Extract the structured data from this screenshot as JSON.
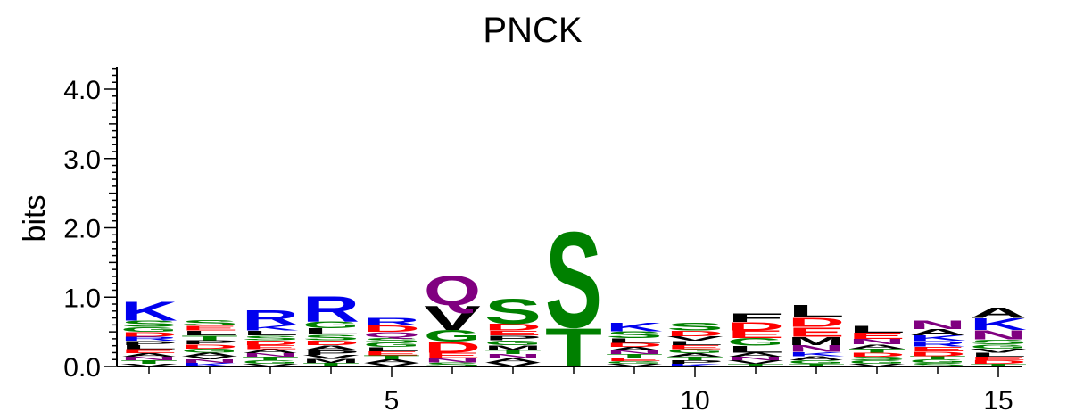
{
  "chart_data": {
    "type": "sequence-logo",
    "title": "PNCK",
    "ylabel": "bits",
    "ylim": [
      0,
      4.3
    ],
    "y_ticks": [
      {
        "value": 0.0,
        "label": "0.0"
      },
      {
        "value": 1.0,
        "label": "1.0"
      },
      {
        "value": 2.0,
        "label": "2.0"
      },
      {
        "value": 3.0,
        "label": "3.0"
      },
      {
        "value": 4.0,
        "label": "4.0"
      }
    ],
    "x_ticks": [
      {
        "position": 5,
        "label": "5"
      },
      {
        "position": 10,
        "label": "10"
      },
      {
        "position": 15,
        "label": "15"
      }
    ],
    "residue_colors": {
      "K": "#0000ee",
      "R": "#0000ee",
      "H": "#0000ee",
      "D": "#ff0000",
      "E": "#ff0000",
      "S": "#008000",
      "T": "#008000",
      "G": "#008000",
      "Y": "#008000",
      "C": "#008000",
      "Q": "#800080",
      "N": "#800080",
      "A": "#000000",
      "V": "#000000",
      "L": "#000000",
      "I": "#000000",
      "P": "#000000",
      "F": "#000000",
      "M": "#000000",
      "W": "#000000"
    },
    "positions": [
      {
        "pos": 1,
        "stack": [
          [
            "V",
            0.04
          ],
          [
            "T",
            0.05
          ],
          [
            "N",
            0.05
          ],
          [
            "A",
            0.05
          ],
          [
            "E",
            0.06
          ],
          [
            "L",
            0.06
          ],
          [
            "P",
            0.06
          ],
          [
            "R",
            0.06
          ],
          [
            "D",
            0.07
          ],
          [
            "G",
            0.07
          ],
          [
            "S",
            0.09
          ],
          [
            "K",
            0.28
          ]
        ]
      },
      {
        "pos": 2,
        "stack": [
          [
            "K",
            0.05
          ],
          [
            "N",
            0.05
          ],
          [
            "V",
            0.05
          ],
          [
            "A",
            0.05
          ],
          [
            "G",
            0.06
          ],
          [
            "D",
            0.06
          ],
          [
            "P",
            0.06
          ],
          [
            "T",
            0.07
          ],
          [
            "L",
            0.07
          ],
          [
            "E",
            0.07
          ],
          [
            "S",
            0.08
          ]
        ]
      },
      {
        "pos": 3,
        "stack": [
          [
            "V",
            0.04
          ],
          [
            "G",
            0.05
          ],
          [
            "T",
            0.05
          ],
          [
            "N",
            0.05
          ],
          [
            "A",
            0.06
          ],
          [
            "E",
            0.06
          ],
          [
            "D",
            0.07
          ],
          [
            "S",
            0.07
          ],
          [
            "L",
            0.07
          ],
          [
            "K",
            0.08
          ],
          [
            "R",
            0.22
          ]
        ]
      },
      {
        "pos": 4,
        "stack": [
          [
            "T",
            0.05
          ],
          [
            "M",
            0.06
          ],
          [
            "V",
            0.06
          ],
          [
            "P",
            0.07
          ],
          [
            "A",
            0.07
          ],
          [
            "D",
            0.07
          ],
          [
            "S",
            0.08
          ],
          [
            "L",
            0.09
          ],
          [
            "G",
            0.1
          ],
          [
            "R",
            0.38
          ]
        ]
      },
      {
        "pos": 5,
        "stack": [
          [
            "V",
            0.05
          ],
          [
            "A",
            0.05
          ],
          [
            "T",
            0.06
          ],
          [
            "E",
            0.06
          ],
          [
            "L",
            0.06
          ],
          [
            "G",
            0.07
          ],
          [
            "S",
            0.07
          ],
          [
            "Q",
            0.08
          ],
          [
            "D",
            0.09
          ],
          [
            "R",
            0.11
          ]
        ]
      },
      {
        "pos": 6,
        "stack": [
          [
            "S",
            0.06
          ],
          [
            "N",
            0.06
          ],
          [
            "E",
            0.08
          ],
          [
            "D",
            0.16
          ],
          [
            "G",
            0.17
          ],
          [
            "V",
            0.36
          ],
          [
            "Q",
            0.44
          ]
        ]
      },
      {
        "pos": 7,
        "stack": [
          [
            "V",
            0.06
          ],
          [
            "A",
            0.06
          ],
          [
            "N",
            0.06
          ],
          [
            "T",
            0.06
          ],
          [
            "M",
            0.07
          ],
          [
            "G",
            0.07
          ],
          [
            "P",
            0.07
          ],
          [
            "E",
            0.07
          ],
          [
            "D",
            0.1
          ],
          [
            "S",
            0.37
          ]
        ]
      },
      {
        "pos": 8,
        "stack": [
          [
            "T",
            0.57
          ],
          [
            "S",
            1.42
          ]
        ]
      },
      {
        "pos": 9,
        "stack": [
          [
            "V",
            0.04
          ],
          [
            "G",
            0.04
          ],
          [
            "E",
            0.05
          ],
          [
            "T",
            0.05
          ],
          [
            "N",
            0.05
          ],
          [
            "A",
            0.05
          ],
          [
            "D",
            0.06
          ],
          [
            "L",
            0.07
          ],
          [
            "S",
            0.1
          ],
          [
            "K",
            0.13
          ]
        ]
      },
      {
        "pos": 10,
        "stack": [
          [
            "K",
            0.04
          ],
          [
            "P",
            0.05
          ],
          [
            "T",
            0.05
          ],
          [
            "A",
            0.05
          ],
          [
            "G",
            0.06
          ],
          [
            "E",
            0.06
          ],
          [
            "L",
            0.06
          ],
          [
            "V",
            0.07
          ],
          [
            "D",
            0.08
          ],
          [
            "S",
            0.11
          ]
        ]
      },
      {
        "pos": 11,
        "stack": [
          [
            "T",
            0.04
          ],
          [
            "V",
            0.05
          ],
          [
            "N",
            0.05
          ],
          [
            "A",
            0.06
          ],
          [
            "L",
            0.1
          ],
          [
            "G",
            0.11
          ],
          [
            "E",
            0.11
          ],
          [
            "D",
            0.12
          ],
          [
            "F",
            0.13
          ]
        ]
      },
      {
        "pos": 12,
        "stack": [
          [
            "T",
            0.04
          ],
          [
            "G",
            0.05
          ],
          [
            "A",
            0.06
          ],
          [
            "K",
            0.06
          ],
          [
            "N",
            0.1
          ],
          [
            "M",
            0.12
          ],
          [
            "E",
            0.14
          ],
          [
            "D",
            0.14
          ],
          [
            "L",
            0.19
          ]
        ]
      },
      {
        "pos": 13,
        "stack": [
          [
            "V",
            0.04
          ],
          [
            "G",
            0.05
          ],
          [
            "S",
            0.05
          ],
          [
            "D",
            0.06
          ],
          [
            "T",
            0.06
          ],
          [
            "A",
            0.06
          ],
          [
            "N",
            0.08
          ],
          [
            "E",
            0.09
          ],
          [
            "L",
            0.1
          ]
        ]
      },
      {
        "pos": 14,
        "stack": [
          [
            "S",
            0.05
          ],
          [
            "G",
            0.05
          ],
          [
            "T",
            0.05
          ],
          [
            "D",
            0.07
          ],
          [
            "E",
            0.07
          ],
          [
            "R",
            0.08
          ],
          [
            "K",
            0.08
          ],
          [
            "A",
            0.09
          ],
          [
            "N",
            0.13
          ]
        ]
      },
      {
        "pos": 15,
        "stack": [
          [
            "T",
            0.04
          ],
          [
            "D",
            0.05
          ],
          [
            "E",
            0.05
          ],
          [
            "L",
            0.06
          ],
          [
            "V",
            0.06
          ],
          [
            "G",
            0.06
          ],
          [
            "S",
            0.07
          ],
          [
            "N",
            0.14
          ],
          [
            "K",
            0.17
          ],
          [
            "A",
            0.15
          ]
        ]
      }
    ]
  }
}
